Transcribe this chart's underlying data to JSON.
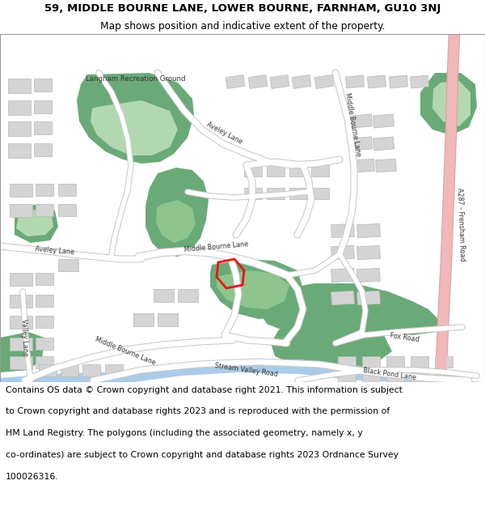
{
  "title_line1": "59, MIDDLE BOURNE LANE, LOWER BOURNE, FARNHAM, GU10 3NJ",
  "title_line2": "Map shows position and indicative extent of the property.",
  "footer_lines": [
    "Contains OS data © Crown copyright and database right 2021. This information is subject",
    "to Crown copyright and database rights 2023 and is reproduced with the permission of",
    "HM Land Registry. The polygons (including the associated geometry, namely x, y",
    "co-ordinates) are subject to Crown copyright and database rights 2023 Ordnance Survey",
    "100026316."
  ],
  "map_bg": "#f5f5f5",
  "road_color": "#ffffff",
  "road_outline_color": "#c8c8c8",
  "building_color": "#d4d4d4",
  "building_outline": "#b8b8b8",
  "green_dark": "#6aaa78",
  "green_light": "#b2d8b0",
  "green_medium": "#8ec48e",
  "water_color": "#aacce8",
  "pink_road_fill": "#f0b8b8",
  "pink_road_outline": "#dda0a0",
  "red_highlight": "#ee1111",
  "title_fontsize": 9.5,
  "subtitle_fontsize": 8.8,
  "footer_fontsize": 7.8,
  "label_fontsize": 5.8,
  "label_color": "#333333"
}
